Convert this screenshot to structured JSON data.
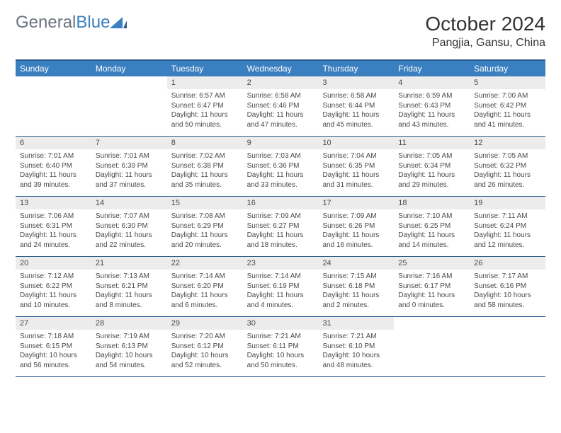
{
  "logo": {
    "word1": "General",
    "word2": "Blue"
  },
  "title": "October 2024",
  "location": "Pangjia, Gansu, China",
  "colors": {
    "header_bg": "#3a7fbf",
    "rule": "#2a5a8a",
    "daynum_bg": "#ececec",
    "text": "#333333",
    "muted": "#4a4a4a"
  },
  "day_headers": [
    "Sunday",
    "Monday",
    "Tuesday",
    "Wednesday",
    "Thursday",
    "Friday",
    "Saturday"
  ],
  "weeks": [
    [
      {
        "n": "",
        "sr": "",
        "ss": "",
        "dl": ""
      },
      {
        "n": "",
        "sr": "",
        "ss": "",
        "dl": ""
      },
      {
        "n": "1",
        "sr": "Sunrise: 6:57 AM",
        "ss": "Sunset: 6:47 PM",
        "dl": "Daylight: 11 hours and 50 minutes."
      },
      {
        "n": "2",
        "sr": "Sunrise: 6:58 AM",
        "ss": "Sunset: 6:46 PM",
        "dl": "Daylight: 11 hours and 47 minutes."
      },
      {
        "n": "3",
        "sr": "Sunrise: 6:58 AM",
        "ss": "Sunset: 6:44 PM",
        "dl": "Daylight: 11 hours and 45 minutes."
      },
      {
        "n": "4",
        "sr": "Sunrise: 6:59 AM",
        "ss": "Sunset: 6:43 PM",
        "dl": "Daylight: 11 hours and 43 minutes."
      },
      {
        "n": "5",
        "sr": "Sunrise: 7:00 AM",
        "ss": "Sunset: 6:42 PM",
        "dl": "Daylight: 11 hours and 41 minutes."
      }
    ],
    [
      {
        "n": "6",
        "sr": "Sunrise: 7:01 AM",
        "ss": "Sunset: 6:40 PM",
        "dl": "Daylight: 11 hours and 39 minutes."
      },
      {
        "n": "7",
        "sr": "Sunrise: 7:01 AM",
        "ss": "Sunset: 6:39 PM",
        "dl": "Daylight: 11 hours and 37 minutes."
      },
      {
        "n": "8",
        "sr": "Sunrise: 7:02 AM",
        "ss": "Sunset: 6:38 PM",
        "dl": "Daylight: 11 hours and 35 minutes."
      },
      {
        "n": "9",
        "sr": "Sunrise: 7:03 AM",
        "ss": "Sunset: 6:36 PM",
        "dl": "Daylight: 11 hours and 33 minutes."
      },
      {
        "n": "10",
        "sr": "Sunrise: 7:04 AM",
        "ss": "Sunset: 6:35 PM",
        "dl": "Daylight: 11 hours and 31 minutes."
      },
      {
        "n": "11",
        "sr": "Sunrise: 7:05 AM",
        "ss": "Sunset: 6:34 PM",
        "dl": "Daylight: 11 hours and 29 minutes."
      },
      {
        "n": "12",
        "sr": "Sunrise: 7:05 AM",
        "ss": "Sunset: 6:32 PM",
        "dl": "Daylight: 11 hours and 26 minutes."
      }
    ],
    [
      {
        "n": "13",
        "sr": "Sunrise: 7:06 AM",
        "ss": "Sunset: 6:31 PM",
        "dl": "Daylight: 11 hours and 24 minutes."
      },
      {
        "n": "14",
        "sr": "Sunrise: 7:07 AM",
        "ss": "Sunset: 6:30 PM",
        "dl": "Daylight: 11 hours and 22 minutes."
      },
      {
        "n": "15",
        "sr": "Sunrise: 7:08 AM",
        "ss": "Sunset: 6:29 PM",
        "dl": "Daylight: 11 hours and 20 minutes."
      },
      {
        "n": "16",
        "sr": "Sunrise: 7:09 AM",
        "ss": "Sunset: 6:27 PM",
        "dl": "Daylight: 11 hours and 18 minutes."
      },
      {
        "n": "17",
        "sr": "Sunrise: 7:09 AM",
        "ss": "Sunset: 6:26 PM",
        "dl": "Daylight: 11 hours and 16 minutes."
      },
      {
        "n": "18",
        "sr": "Sunrise: 7:10 AM",
        "ss": "Sunset: 6:25 PM",
        "dl": "Daylight: 11 hours and 14 minutes."
      },
      {
        "n": "19",
        "sr": "Sunrise: 7:11 AM",
        "ss": "Sunset: 6:24 PM",
        "dl": "Daylight: 11 hours and 12 minutes."
      }
    ],
    [
      {
        "n": "20",
        "sr": "Sunrise: 7:12 AM",
        "ss": "Sunset: 6:22 PM",
        "dl": "Daylight: 11 hours and 10 minutes."
      },
      {
        "n": "21",
        "sr": "Sunrise: 7:13 AM",
        "ss": "Sunset: 6:21 PM",
        "dl": "Daylight: 11 hours and 8 minutes."
      },
      {
        "n": "22",
        "sr": "Sunrise: 7:14 AM",
        "ss": "Sunset: 6:20 PM",
        "dl": "Daylight: 11 hours and 6 minutes."
      },
      {
        "n": "23",
        "sr": "Sunrise: 7:14 AM",
        "ss": "Sunset: 6:19 PM",
        "dl": "Daylight: 11 hours and 4 minutes."
      },
      {
        "n": "24",
        "sr": "Sunrise: 7:15 AM",
        "ss": "Sunset: 6:18 PM",
        "dl": "Daylight: 11 hours and 2 minutes."
      },
      {
        "n": "25",
        "sr": "Sunrise: 7:16 AM",
        "ss": "Sunset: 6:17 PM",
        "dl": "Daylight: 11 hours and 0 minutes."
      },
      {
        "n": "26",
        "sr": "Sunrise: 7:17 AM",
        "ss": "Sunset: 6:16 PM",
        "dl": "Daylight: 10 hours and 58 minutes."
      }
    ],
    [
      {
        "n": "27",
        "sr": "Sunrise: 7:18 AM",
        "ss": "Sunset: 6:15 PM",
        "dl": "Daylight: 10 hours and 56 minutes."
      },
      {
        "n": "28",
        "sr": "Sunrise: 7:19 AM",
        "ss": "Sunset: 6:13 PM",
        "dl": "Daylight: 10 hours and 54 minutes."
      },
      {
        "n": "29",
        "sr": "Sunrise: 7:20 AM",
        "ss": "Sunset: 6:12 PM",
        "dl": "Daylight: 10 hours and 52 minutes."
      },
      {
        "n": "30",
        "sr": "Sunrise: 7:21 AM",
        "ss": "Sunset: 6:11 PM",
        "dl": "Daylight: 10 hours and 50 minutes."
      },
      {
        "n": "31",
        "sr": "Sunrise: 7:21 AM",
        "ss": "Sunset: 6:10 PM",
        "dl": "Daylight: 10 hours and 48 minutes."
      },
      {
        "n": "",
        "sr": "",
        "ss": "",
        "dl": ""
      },
      {
        "n": "",
        "sr": "",
        "ss": "",
        "dl": ""
      }
    ]
  ]
}
